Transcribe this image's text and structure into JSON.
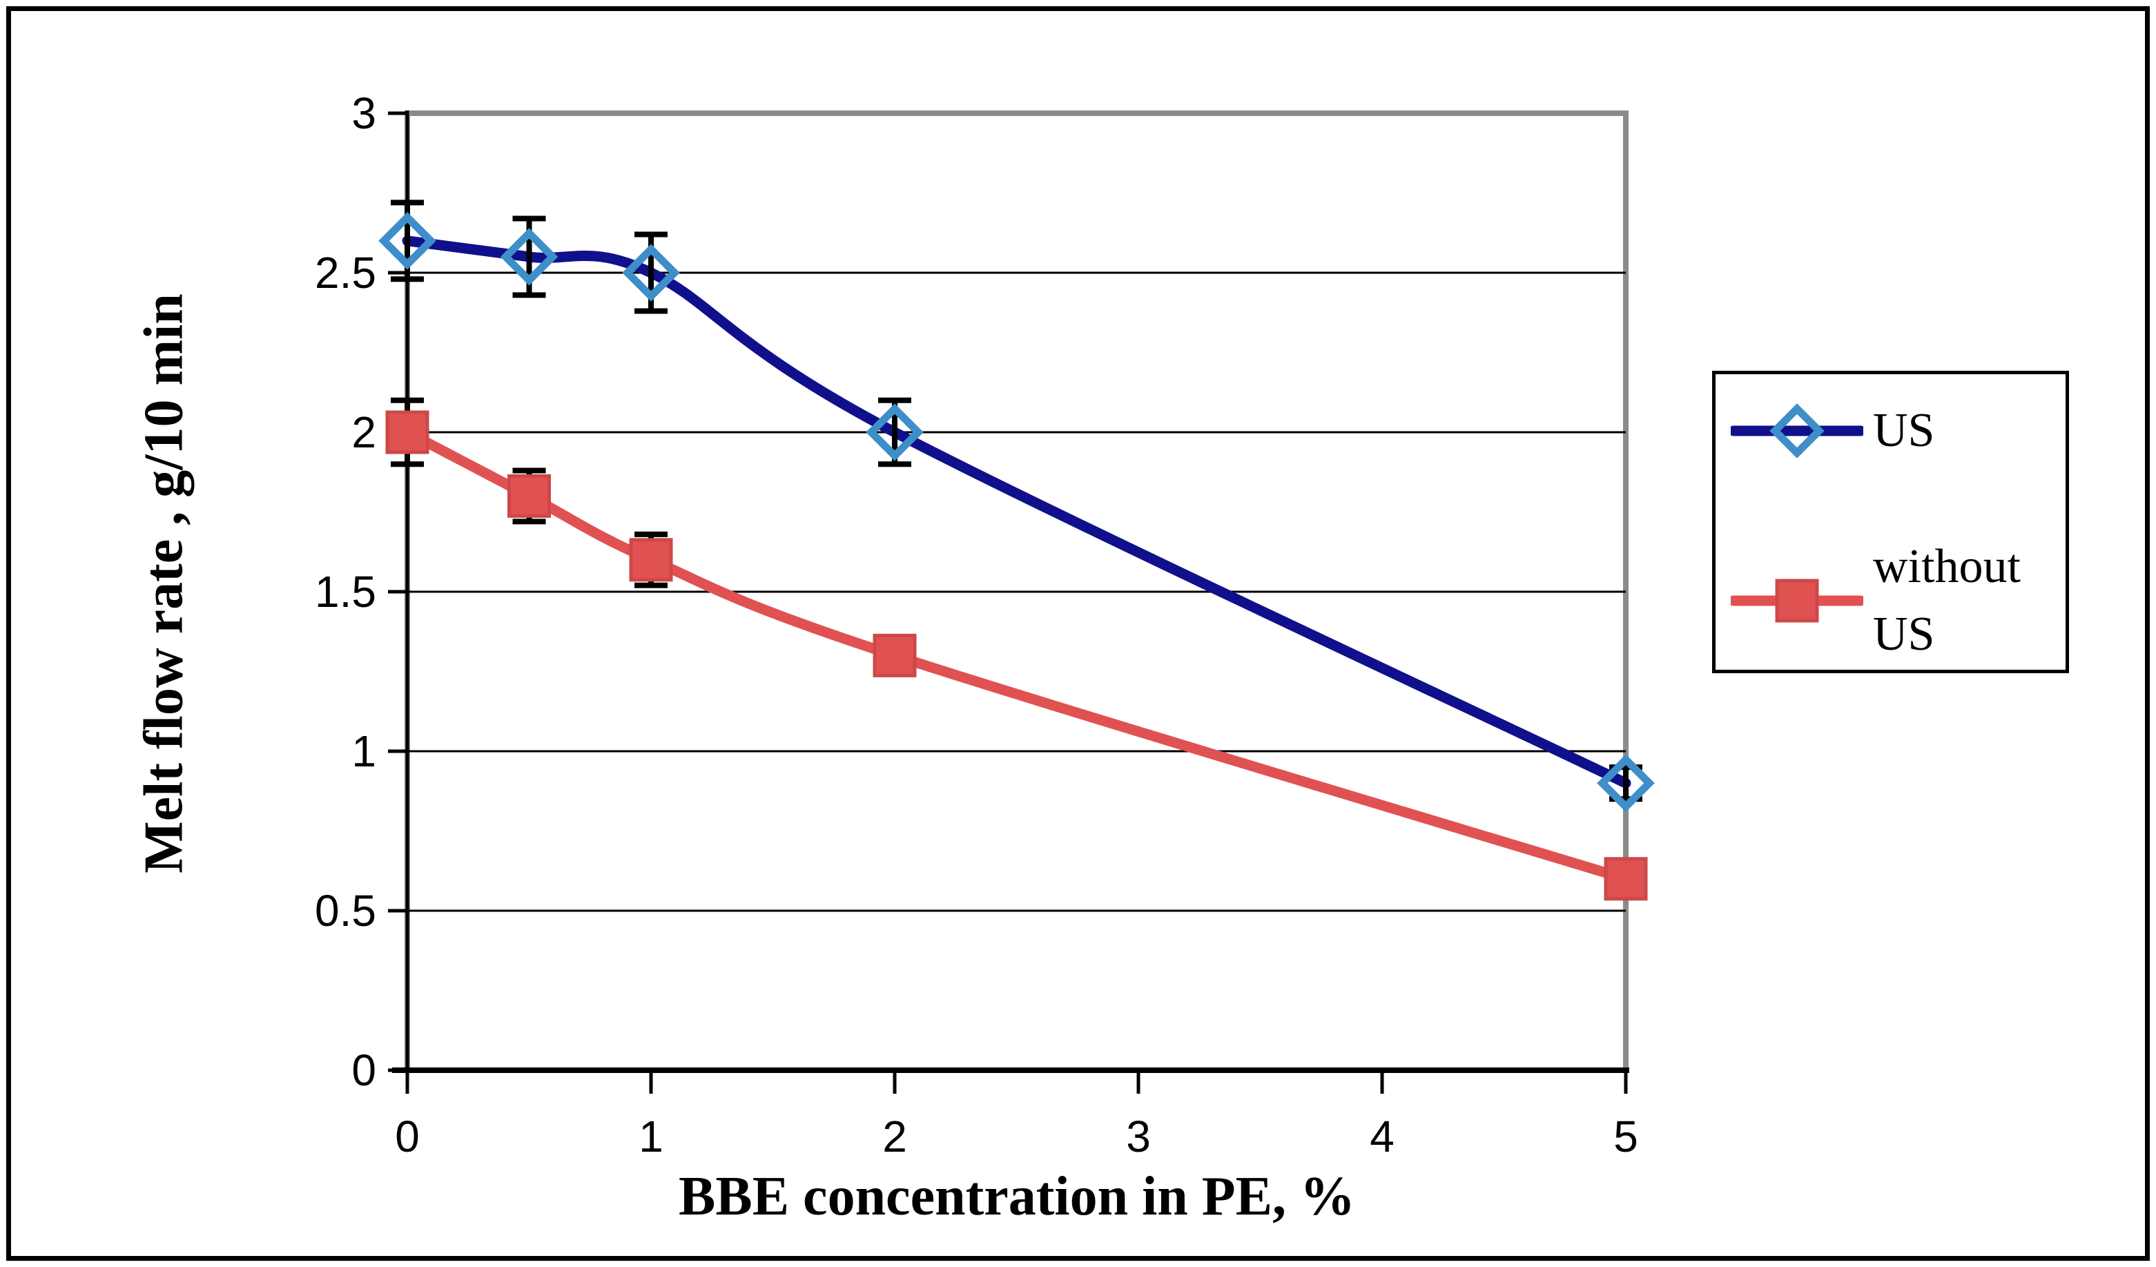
{
  "figure": {
    "x_axis_title": "BBE concentration in PE, %",
    "y_axis_title": "Melt flow rate , g/10 min"
  },
  "legend": {
    "position": "right",
    "items": [
      {
        "label": "US"
      },
      {
        "label": "without US"
      }
    ]
  },
  "chart_data": {
    "type": "line",
    "title": "",
    "xlabel": "BBE concentration in PE, %",
    "ylabel": "Melt flow rate , g/10 min",
    "x": [
      0,
      0.5,
      1,
      2,
      5
    ],
    "xlim": [
      0,
      5
    ],
    "ylim": [
      0,
      3
    ],
    "x_ticks": [
      0,
      1,
      2,
      3,
      4,
      5
    ],
    "x_tick_labels": [
      "0",
      "1",
      "2",
      "3",
      "4",
      "5"
    ],
    "y_ticks": [
      0,
      0.5,
      1,
      1.5,
      2,
      2.5,
      3
    ],
    "y_tick_labels": [
      "0",
      "0.5",
      "1",
      "1.5",
      "2",
      "2.5",
      "3"
    ],
    "grid": "horizontal-major",
    "legend_position": "right-outside",
    "series": [
      {
        "name": "US",
        "values": [
          2.6,
          2.55,
          2.5,
          2.0,
          0.9
        ],
        "errors": [
          0.12,
          0.12,
          0.12,
          0.1,
          0.05
        ],
        "line_color": "#10108c",
        "marker": "open-diamond",
        "marker_color": "#3e8ec9",
        "smooth": true
      },
      {
        "name": "without US",
        "values": [
          2.0,
          1.8,
          1.6,
          1.3,
          0.6
        ],
        "errors": [
          0.1,
          0.08,
          0.08,
          0.05,
          0.03
        ],
        "line_color": "#e05252",
        "marker": "filled-square",
        "marker_color": "#e05252",
        "marker_edge_color": "#ce4747",
        "smooth": true
      }
    ],
    "error_bar_color": "#000000",
    "plot_border_color": "#8b8b8b",
    "gridline_color": "#000000",
    "axis_color": "#000000",
    "tick_label_color": "#000000"
  }
}
